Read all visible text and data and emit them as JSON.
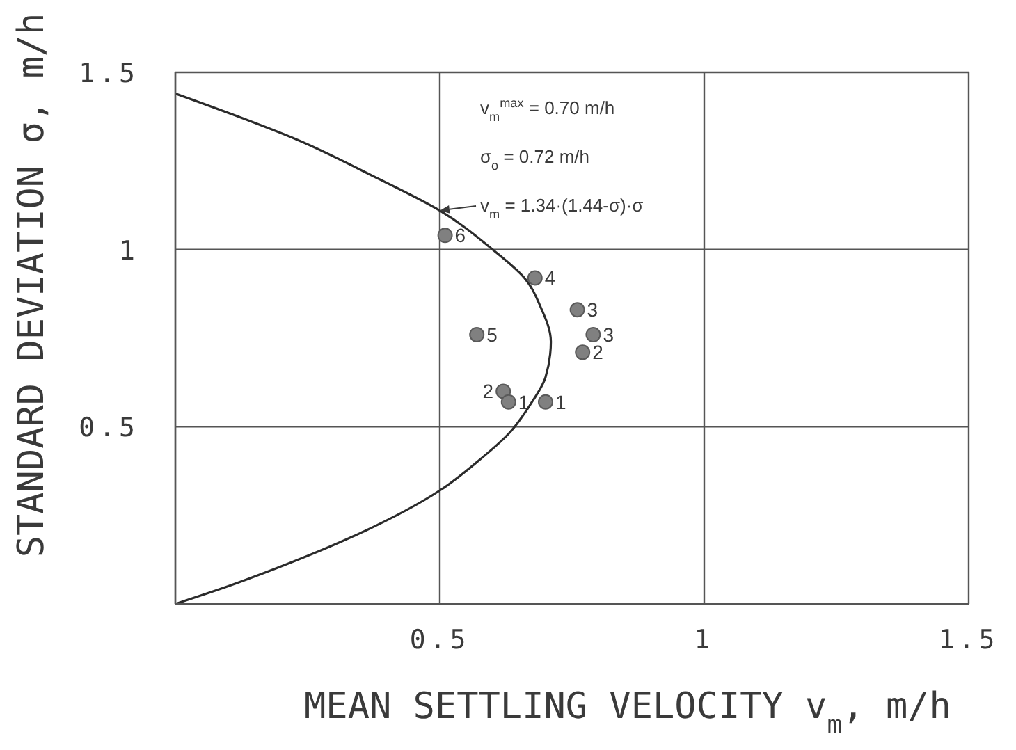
{
  "chart_data": {
    "type": "scatter",
    "xlabel": "MEAN SETTLING VELOCITY v$_{m}$, m/h",
    "ylabel": "STANDARD DEVIATION σ, m/h",
    "xlim": [
      0,
      1.5
    ],
    "ylim": [
      0,
      1.5
    ],
    "xticks": [
      0.5,
      1,
      1.5
    ],
    "yticks": [
      0.5,
      1,
      1.5
    ],
    "grid": true,
    "series": [
      {
        "color": "#808080",
        "marker": "circle",
        "x": [
          0.51,
          0.68,
          0.76,
          0.79,
          0.77,
          0.57,
          0.62,
          0.63,
          0.7
        ],
        "values": [
          1.04,
          0.92,
          0.83,
          0.76,
          0.71,
          0.76,
          0.6,
          0.57,
          0.57
        ]
      },
      {
        "type": "line",
        "color": "#2b2b2b",
        "marker": "none",
        "x": [
          0,
          0.1,
          0.19,
          0.35,
          0.5,
          0.57,
          0.63,
          0.67,
          0.7,
          0.71,
          0.69,
          0.66,
          0.6,
          0.5,
          0.37,
          0.23,
          0.11,
          0
        ],
        "values": [
          0,
          0.05,
          0.1,
          0.2,
          0.32,
          0.4,
          0.48,
          0.56,
          0.64,
          0.74,
          0.84,
          0.92,
          1.0,
          1.11,
          1.21,
          1.31,
          1.38,
          1.44
        ]
      }
    ],
    "annotations": [
      "v$_{m}$$^{max}$ = 0.70 m/h",
      "σ$_{o}$ = 0.72 m/h",
      {
        "text": "v$_{m}$ = 1.34·(1.44-σ)·σ",
        "x": 0.5,
        "y": 1.11
      },
      {
        "text": "6",
        "x": 0.51,
        "y": 1.04
      },
      {
        "text": "4",
        "x": 0.68,
        "y": 0.92
      },
      {
        "text": "3",
        "x": 0.76,
        "y": 0.83
      },
      {
        "text": "3",
        "x": 0.79,
        "y": 0.76
      },
      {
        "text": "2",
        "x": 0.77,
        "y": 0.71
      },
      {
        "text": "5",
        "x": 0.57,
        "y": 0.76
      },
      {
        "text": "2",
        "x": 0.62,
        "y": 0.6
      },
      {
        "text": "1",
        "x": 0.63,
        "y": 0.57
      },
      {
        "text": "1",
        "x": 0.7,
        "y": 0.57
      }
    ]
  }
}
